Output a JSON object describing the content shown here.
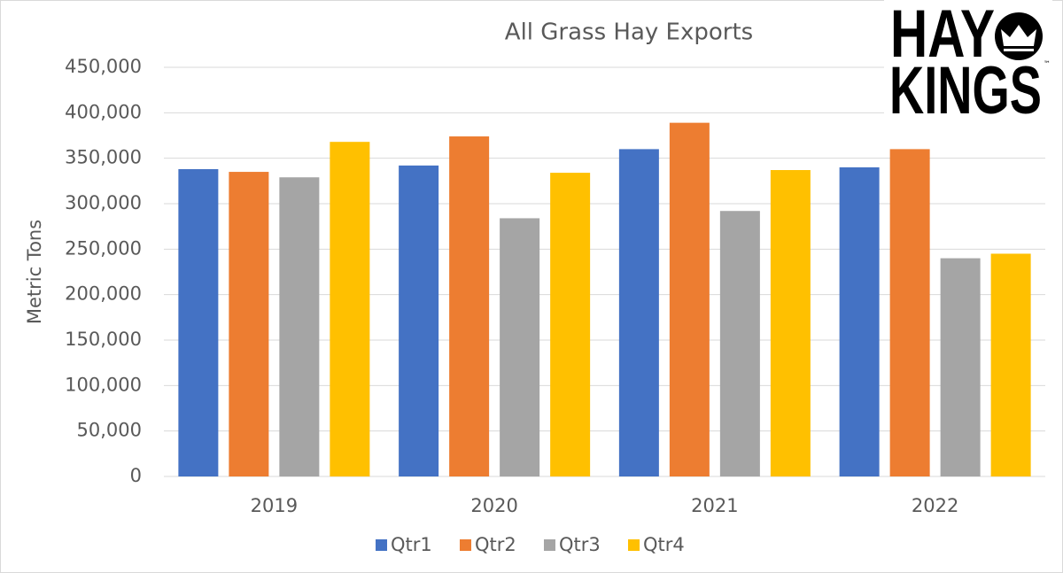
{
  "chart_data": {
    "type": "bar",
    "title": "All Grass Hay Exports",
    "y_label": "Metric Tons",
    "categories": [
      "2019",
      "2020",
      "2021",
      "2022"
    ],
    "series": [
      {
        "name": "Qtr1",
        "color": "#4472c4",
        "values": [
          338000,
          342000,
          360000,
          340000
        ]
      },
      {
        "name": "Qtr2",
        "color": "#ed7d31",
        "values": [
          335000,
          374000,
          389000,
          360000
        ]
      },
      {
        "name": "Qtr3",
        "color": "#a5a5a5",
        "values": [
          329000,
          284000,
          292000,
          240000
        ]
      },
      {
        "name": "Qtr4",
        "color": "#ffc000",
        "values": [
          368000,
          334000,
          337000,
          245000
        ]
      }
    ],
    "ylim": [
      0,
      450000
    ],
    "yticks": [
      0,
      {
        "value": 50000,
        "label": "50,000"
      },
      {
        "value": 100000,
        "label": "100,000"
      },
      {
        "value": 150000,
        "label": "150,000"
      },
      {
        "value": 200000,
        "label": "200,000"
      },
      {
        "value": 250000,
        "label": "250,000"
      },
      {
        "value": 300000,
        "label": "300,000"
      },
      {
        "value": 350000,
        "label": "350,000"
      },
      {
        "value": 400000,
        "label": "400,000"
      },
      {
        "value": 450000,
        "label": "450,000"
      }
    ],
    "grid": true,
    "legend": "bottom"
  },
  "logo": {
    "top": "HAY",
    "bottom": "KINGS",
    "mark": "™"
  }
}
